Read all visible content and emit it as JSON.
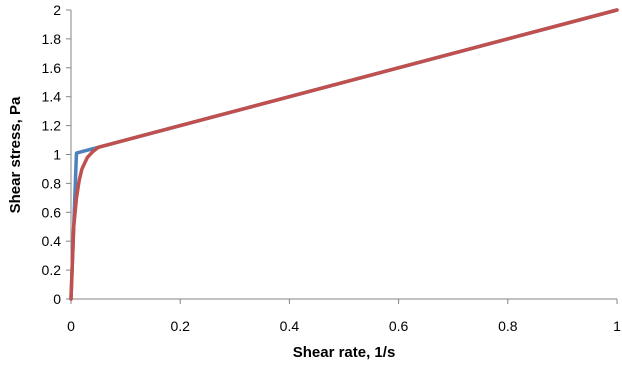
{
  "chart_data": {
    "type": "line",
    "title": "",
    "xlabel": "Shear rate, 1/s",
    "ylabel": "Shear stress, Pa",
    "xlim": [
      0,
      1
    ],
    "ylim": [
      0,
      2
    ],
    "x_ticks": [
      "0",
      "0.2",
      "0.4",
      "0.6",
      "0.8",
      "1"
    ],
    "y_ticks": [
      "0",
      "0.2",
      "0.4",
      "0.6",
      "0.8",
      "1",
      "1.2",
      "1.4",
      "1.6",
      "1.8",
      "2"
    ],
    "x_tick_values": [
      0,
      0.2,
      0.4,
      0.6,
      0.8,
      1
    ],
    "y_tick_values": [
      0,
      0.2,
      0.4,
      0.6,
      0.8,
      1,
      1.2,
      1.4,
      1.6,
      1.8,
      2
    ],
    "grid": false,
    "legend": "none",
    "series": [
      {
        "color": "#4F81BD",
        "x": [
          0,
          0.01,
          0.05,
          1
        ],
        "y": [
          0,
          1.01,
          1.05,
          2
        ]
      },
      {
        "color": "#C0504D",
        "x": [
          0,
          0.005,
          0.01,
          0.015,
          0.02,
          0.03,
          0.04,
          0.05,
          0.1,
          1
        ],
        "y": [
          0,
          0.5,
          0.7,
          0.82,
          0.9,
          0.98,
          1.02,
          1.05,
          1.1,
          2
        ]
      }
    ]
  }
}
